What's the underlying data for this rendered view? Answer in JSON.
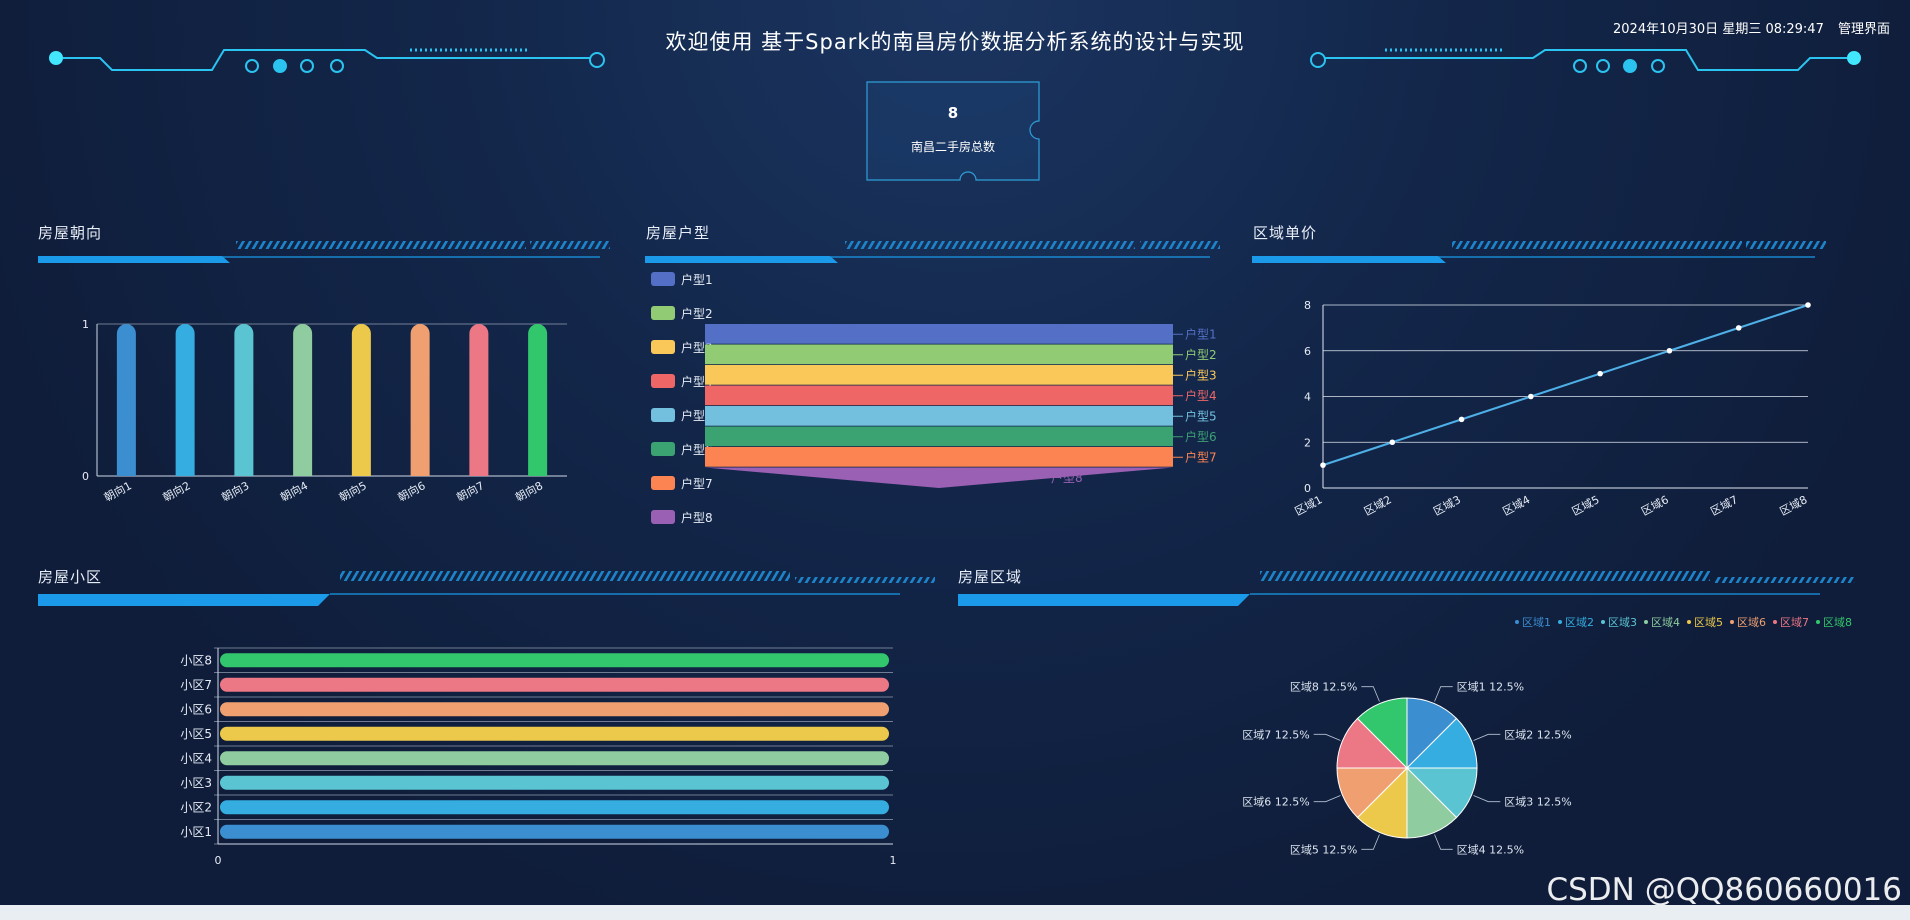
{
  "header": {
    "title": "欢迎使用 基于Spark的南昌房价数据分析系统的设计与实现",
    "datetime": "2024年10月30日 星期三 08:29:47",
    "admin_link": "管理界面"
  },
  "stat": {
    "value": "8",
    "label": "南昌二手房总数"
  },
  "panels": {
    "orientation": "房屋朝向",
    "layout": "房屋户型",
    "district_price": "区域单价",
    "community": "房屋小区",
    "region": "房屋区域"
  },
  "colors": {
    "palette": [
      "#3b8ed0",
      "#35ade0",
      "#5bc4d3",
      "#8fcc9f",
      "#ecc94b",
      "#f0a070",
      "#ec7785",
      "#33c76d"
    ],
    "funnel": [
      "#5470c6",
      "#91cc75",
      "#fac858",
      "#ee6666",
      "#73c0de",
      "#3ba272",
      "#fc8452",
      "#9a60b4"
    ]
  },
  "watermark": "CSDN @QQ860660016",
  "chart_data": [
    {
      "id": "orientation",
      "type": "bar",
      "categories": [
        "朝向1",
        "朝向2",
        "朝向3",
        "朝向4",
        "朝向5",
        "朝向6",
        "朝向7",
        "朝向8"
      ],
      "values": [
        1,
        1,
        1,
        1,
        1,
        1,
        1,
        1
      ],
      "yticks": [
        "0",
        "1"
      ],
      "ylim": [
        0,
        1
      ]
    },
    {
      "id": "layout",
      "type": "funnel",
      "categories": [
        "户型1",
        "户型2",
        "户型3",
        "户型4",
        "户型5",
        "户型6",
        "户型7",
        "户型8"
      ],
      "values": [
        1,
        1,
        1,
        1,
        1,
        1,
        1,
        1
      ],
      "legend": "left"
    },
    {
      "id": "district_price",
      "type": "line",
      "categories": [
        "区域1",
        "区域2",
        "区域3",
        "区域4",
        "区域5",
        "区域6",
        "区域7",
        "区域8"
      ],
      "values": [
        1,
        2,
        3,
        4,
        5,
        6,
        7,
        8
      ],
      "yticks": [
        "0",
        "2",
        "4",
        "6",
        "8"
      ],
      "ylim": [
        0,
        8
      ]
    },
    {
      "id": "community",
      "type": "bar",
      "orientation": "horizontal",
      "categories": [
        "小区1",
        "小区2",
        "小区3",
        "小区4",
        "小区5",
        "小区6",
        "小区7",
        "小区8"
      ],
      "values": [
        1,
        1,
        1,
        1,
        1,
        1,
        1,
        1
      ],
      "xticks": [
        "0",
        "1"
      ],
      "xlim": [
        0,
        1
      ]
    },
    {
      "id": "region",
      "type": "pie",
      "categories": [
        "区域1",
        "区域2",
        "区域3",
        "区域4",
        "区域5",
        "区域6",
        "区域7",
        "区域8"
      ],
      "values": [
        1,
        1,
        1,
        1,
        1,
        1,
        1,
        1
      ],
      "labels": [
        "区域1 12.5%",
        "区域2 12.5%",
        "区域3 12.5%",
        "区域4 12.5%",
        "区域5 12.5%",
        "区域6 12.5%",
        "区域7 12.5%",
        "区域8 12.5%"
      ],
      "legend": "top-right"
    }
  ]
}
